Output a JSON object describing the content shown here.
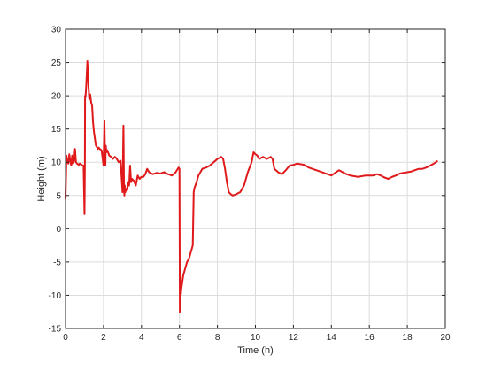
{
  "chart_data": {
    "type": "line",
    "title": "",
    "xlabel": "Time (h)",
    "ylabel": "Height (m)",
    "xlim": [
      0,
      20
    ],
    "ylim": [
      -15,
      30
    ],
    "xticks": [
      "0",
      "2",
      "4",
      "6",
      "8",
      "10",
      "12",
      "14",
      "16",
      "18",
      "20"
    ],
    "yticks": [
      "-15",
      "-10",
      "-5",
      "0",
      "5",
      "10",
      "15",
      "20",
      "25",
      "30"
    ],
    "grid": true,
    "line_color": "#e0191b",
    "series": [
      {
        "x": [
          0,
          0.05,
          0.1,
          0.15,
          0.2,
          0.25,
          0.3,
          0.35,
          0.4,
          0.45,
          0.5,
          0.55,
          0.6,
          0.65,
          0.7,
          0.75,
          0.8,
          0.85,
          0.9,
          0.95,
          1.0,
          1.02,
          1.03,
          1.05,
          1.07,
          1.1,
          1.15,
          1.2,
          1.25,
          1.3,
          1.35,
          1.4,
          1.45,
          1.5,
          1.55,
          1.6,
          1.65,
          1.7,
          1.75,
          1.8,
          1.9,
          2.0,
          2.05,
          2.08,
          2.1,
          2.12,
          2.15,
          2.2,
          2.3,
          2.4,
          2.5,
          2.6,
          2.7,
          2.8,
          2.9,
          3.0,
          3.05,
          3.08,
          3.1,
          3.12,
          3.15,
          3.2,
          3.25,
          3.3,
          3.35,
          3.4,
          3.45,
          3.5,
          3.6,
          3.7,
          3.8,
          3.9,
          4.0,
          4.1,
          4.2,
          4.3,
          4.4,
          4.5,
          4.6,
          4.8,
          5.0,
          5.2,
          5.4,
          5.6,
          5.8,
          5.95,
          6.0,
          6.02,
          6.05,
          6.1,
          6.2,
          6.3,
          6.4,
          6.5,
          6.6,
          6.7,
          6.75,
          6.78,
          6.8,
          6.9,
          7.0,
          7.2,
          7.4,
          7.6,
          7.8,
          8.0,
          8.2,
          8.3,
          8.4,
          8.5,
          8.6,
          8.7,
          8.8,
          9.0,
          9.2,
          9.4,
          9.6,
          9.8,
          9.9,
          10.0,
          10.1,
          10.2,
          10.4,
          10.6,
          10.8,
          10.9,
          11.0,
          11.2,
          11.4,
          11.6,
          11.8,
          12.0,
          12.2,
          12.4,
          12.6,
          12.8,
          13.0,
          13.2,
          13.4,
          13.6,
          13.8,
          14.0,
          14.2,
          14.4,
          14.6,
          14.8,
          15.0,
          15.2,
          15.4,
          15.6,
          15.8,
          16.0,
          16.2,
          16.4,
          16.6,
          16.8,
          17.0,
          17.2,
          17.4,
          17.6,
          17.8,
          18.0,
          18.2,
          18.4,
          18.6,
          18.8,
          19.0,
          19.2,
          19.4,
          19.6
        ],
        "y": [
          4.5,
          11.0,
          10.0,
          9.8,
          11.2,
          10.2,
          9.5,
          11.0,
          9.8,
          10.2,
          12.0,
          10.0,
          9.8,
          9.7,
          9.6,
          9.8,
          9.7,
          9.6,
          9.5,
          9.5,
          2.2,
          9.5,
          20.0,
          19.8,
          20.5,
          22.0,
          25.2,
          22.0,
          19.5,
          20.2,
          19.0,
          18.5,
          16.0,
          14.5,
          13.5,
          12.5,
          12.3,
          12.0,
          12.2,
          12.0,
          11.8,
          9.5,
          16.2,
          11.0,
          9.5,
          12.5,
          11.5,
          11.8,
          11.0,
          10.8,
          10.5,
          10.8,
          10.5,
          10.0,
          10.2,
          5.5,
          15.5,
          6.0,
          5.0,
          6.5,
          5.5,
          6.0,
          5.8,
          7.0,
          6.5,
          9.5,
          7.0,
          7.5,
          7.2,
          6.5,
          8.0,
          7.5,
          7.8,
          7.8,
          8.2,
          9.0,
          8.5,
          8.3,
          8.2,
          8.4,
          8.3,
          8.5,
          8.2,
          8.0,
          8.5,
          9.2,
          9.0,
          -12.5,
          -10.5,
          -9.0,
          -7.0,
          -6.0,
          -5.0,
          -4.5,
          -3.5,
          -2.5,
          5.5,
          6.0,
          6.2,
          7.0,
          8.0,
          9.0,
          9.2,
          9.5,
          10.0,
          10.5,
          10.8,
          10.5,
          9.0,
          7.0,
          5.5,
          5.2,
          5.0,
          5.2,
          5.5,
          6.5,
          8.5,
          10.0,
          11.5,
          11.2,
          11.0,
          10.5,
          10.8,
          10.5,
          10.8,
          10.5,
          9.0,
          8.5,
          8.2,
          8.8,
          9.5,
          9.6,
          9.8,
          9.7,
          9.6,
          9.2,
          9.0,
          8.8,
          8.6,
          8.4,
          8.2,
          8.0,
          8.4,
          8.8,
          8.5,
          8.2,
          8.0,
          7.9,
          7.8,
          7.9,
          8.0,
          8.0,
          8.0,
          8.2,
          8.0,
          7.7,
          7.5,
          7.8,
          8.0,
          8.3,
          8.4,
          8.5,
          8.6,
          8.8,
          9.0,
          9.0,
          9.2,
          9.5,
          9.8,
          10.2
        ]
      }
    ]
  }
}
